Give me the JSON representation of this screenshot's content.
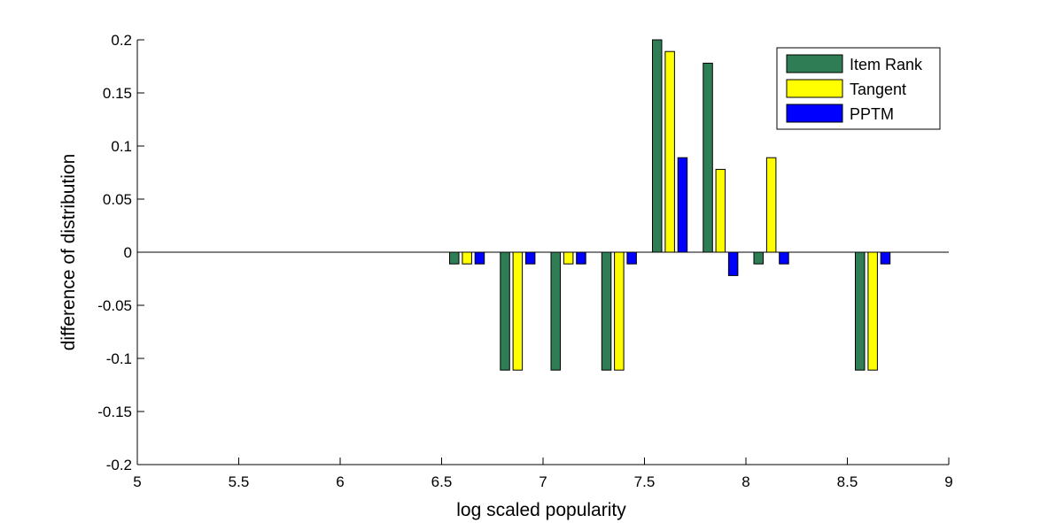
{
  "chart_data": {
    "type": "bar",
    "xlabel": "log scaled popularity",
    "ylabel": "difference of distribution",
    "xlim": [
      5,
      9
    ],
    "ylim": [
      -0.2,
      0.2
    ],
    "xticks": [
      "5",
      "5.5",
      "6",
      "6.5",
      "7",
      "7.5",
      "8",
      "8.5",
      "9"
    ],
    "yticks": [
      "-0.2",
      "-0.15",
      "-0.1",
      "-0.05",
      "0",
      "0.05",
      "0.1",
      "0.15",
      "0.2"
    ],
    "legend_position": "top-right",
    "grid": false,
    "x": [
      6.625,
      6.875,
      7.125,
      7.375,
      7.625,
      7.875,
      8.125,
      8.625
    ],
    "series": [
      {
        "name": "Item Rank",
        "color": "#2e7d55",
        "values": [
          -0.011,
          -0.111,
          -0.111,
          -0.111,
          0.2,
          0.178,
          -0.011,
          -0.111
        ]
      },
      {
        "name": "Tangent",
        "color": "#ffff00",
        "values": [
          -0.011,
          -0.111,
          -0.011,
          -0.111,
          0.189,
          0.078,
          0.089,
          -0.111
        ]
      },
      {
        "name": "PPTM",
        "color": "#0000ff",
        "values": [
          -0.011,
          -0.011,
          -0.011,
          -0.011,
          0.089,
          -0.022,
          -0.011,
          -0.011
        ]
      }
    ]
  }
}
